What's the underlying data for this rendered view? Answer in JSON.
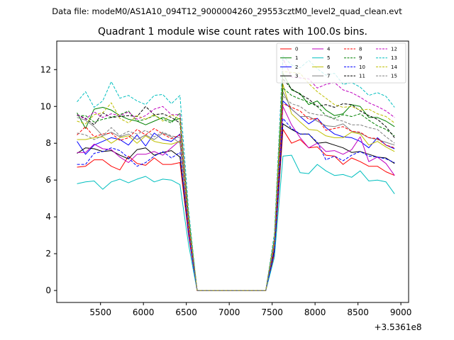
{
  "figure": {
    "suptitle": "Data file: modeM0/AS1A10_094T12_9000004260_29553cztM0_level2_quad_clean.evt",
    "title": "Quadrant 1 module wise count rates with 100.0s bins."
  },
  "chart_data": {
    "type": "line",
    "title": "Quadrant 1 module wise count rates with 100.0s bins.",
    "xlabel": "",
    "ylabel": "",
    "x_offset_label": "+3.5361e8",
    "xlim": [
      4990,
      9090
    ],
    "ylim": [
      -0.65,
      13.55
    ],
    "xticks": [
      5500,
      6000,
      6500,
      7000,
      7500,
      8000,
      8500,
      9000
    ],
    "yticks": [
      0,
      2,
      4,
      6,
      8,
      10,
      12
    ],
    "legend_position": "top-right",
    "legend_columns": 4,
    "x": [
      5226,
      5326,
      5426,
      5526,
      5626,
      5726,
      5826,
      5926,
      6026,
      6126,
      6226,
      6326,
      6426,
      6526,
      6626,
      6726,
      6826,
      6926,
      7026,
      7126,
      7226,
      7326,
      7426,
      7526,
      7626,
      7726,
      7826,
      7926,
      8026,
      8126,
      8226,
      8326,
      8426,
      8526,
      8626,
      8726,
      8826,
      8926
    ],
    "series": [
      {
        "name": "0",
        "color": "#ff0000",
        "dash": "solid",
        "values": [
          6.7,
          6.75,
          7.1,
          7.1,
          6.75,
          6.55,
          7.3,
          6.9,
          6.8,
          7.2,
          6.85,
          6.85,
          6.95,
          3.0,
          0,
          0,
          0,
          0,
          0,
          0,
          0,
          0,
          0,
          2.0,
          8.75,
          8.0,
          8.2,
          7.75,
          7.8,
          7.35,
          7.3,
          6.85,
          7.2,
          7.0,
          6.75,
          6.75,
          6.45,
          6.25
        ]
      },
      {
        "name": "1",
        "color": "#008000",
        "dash": "solid",
        "values": [
          9.65,
          8.8,
          9.85,
          9.95,
          9.8,
          9.5,
          9.3,
          9.2,
          9.0,
          9.2,
          9.4,
          9.2,
          9.35,
          4.0,
          0,
          0,
          0,
          0,
          0,
          0,
          0,
          0,
          0,
          2.7,
          11.8,
          10.9,
          10.7,
          10.1,
          10.3,
          9.8,
          9.5,
          9.6,
          10.1,
          10.0,
          9.4,
          9.4,
          9.2,
          8.9
        ]
      },
      {
        "name": "2",
        "color": "#0000ff",
        "dash": "solid",
        "values": [
          8.1,
          7.4,
          7.9,
          8.1,
          8.3,
          8.2,
          7.9,
          8.45,
          7.85,
          8.55,
          8.2,
          8.1,
          8.5,
          3.5,
          0,
          0,
          0,
          0,
          0,
          0,
          0,
          0,
          0,
          2.4,
          10.3,
          9.85,
          9.45,
          9.05,
          9.35,
          8.85,
          8.5,
          8.35,
          8.3,
          8.1,
          7.75,
          8.3,
          7.9,
          7.7
        ]
      },
      {
        "name": "3",
        "color": "#000000",
        "dash": "solid",
        "values": [
          7.45,
          7.75,
          7.7,
          7.55,
          7.6,
          7.35,
          7.15,
          7.65,
          7.75,
          7.35,
          7.5,
          7.6,
          7.25,
          3.2,
          0,
          0,
          0,
          0,
          0,
          0,
          0,
          0,
          0,
          2.2,
          9.05,
          8.75,
          8.5,
          8.5,
          8.0,
          8.05,
          7.9,
          7.75,
          7.5,
          7.55,
          7.4,
          7.25,
          7.2,
          6.9
        ]
      },
      {
        "name": "4",
        "color": "#bf00bf",
        "dash": "solid",
        "values": [
          7.5,
          7.5,
          7.95,
          7.7,
          7.65,
          7.25,
          6.95,
          7.4,
          7.4,
          7.55,
          7.35,
          7.75,
          8.15,
          3.3,
          0,
          0,
          0,
          0,
          0,
          0,
          0,
          0,
          0,
          2.4,
          10.0,
          9.0,
          8.3,
          7.75,
          8.0,
          7.55,
          7.6,
          7.4,
          7.65,
          8.35,
          7.0,
          7.25,
          6.9,
          6.25
        ]
      },
      {
        "name": "5",
        "color": "#00bfbf",
        "dash": "solid",
        "values": [
          5.8,
          5.9,
          5.95,
          5.5,
          5.9,
          6.05,
          5.85,
          6.05,
          6.2,
          5.9,
          6.05,
          6.0,
          5.75,
          2.5,
          0,
          0,
          0,
          0,
          0,
          0,
          0,
          0,
          0,
          1.8,
          7.3,
          7.35,
          6.4,
          6.35,
          6.85,
          6.5,
          6.25,
          6.3,
          6.15,
          6.5,
          5.95,
          6.0,
          5.9,
          5.25
        ]
      },
      {
        "name": "6",
        "color": "#bfbf00",
        "dash": "solid",
        "values": [
          8.2,
          8.2,
          8.3,
          8.35,
          8.0,
          8.3,
          8.4,
          8.0,
          8.4,
          8.1,
          8.0,
          7.95,
          8.1,
          3.5,
          0,
          0,
          0,
          0,
          0,
          0,
          0,
          0,
          0,
          2.5,
          11.2,
          9.6,
          9.15,
          8.75,
          8.7,
          8.4,
          8.3,
          8.3,
          8.6,
          8.5,
          7.9,
          8.1,
          7.8,
          7.55
        ]
      },
      {
        "name": "7",
        "color": "#808080",
        "dash": "solid",
        "values": [
          9.4,
          9.25,
          8.9,
          8.4,
          8.6,
          8.35,
          8.5,
          8.2,
          8.45,
          8.2,
          8.55,
          8.35,
          8.0,
          3.6,
          0,
          0,
          0,
          0,
          0,
          0,
          0,
          0,
          0,
          2.6,
          10.8,
          9.85,
          9.45,
          9.45,
          9.2,
          8.95,
          8.9,
          9.05,
          8.65,
          8.55,
          8.3,
          8.2,
          8.05,
          7.9
        ]
      },
      {
        "name": "8",
        "color": "#ff0000",
        "dash": "dashed",
        "values": [
          8.45,
          8.9,
          8.35,
          8.5,
          8.55,
          8.15,
          8.3,
          8.75,
          8.45,
          8.8,
          8.5,
          8.25,
          8.45,
          3.6,
          0,
          0,
          0,
          0,
          0,
          0,
          0,
          0,
          0,
          2.6,
          10.15,
          9.95,
          9.75,
          9.3,
          9.35,
          8.7,
          8.8,
          8.9,
          8.65,
          8.6,
          8.3,
          8.25,
          7.9,
          7.75
        ]
      },
      {
        "name": "9",
        "color": "#008000",
        "dash": "dashed",
        "values": [
          9.5,
          9.5,
          9.15,
          9.3,
          9.4,
          9.55,
          9.75,
          9.2,
          9.3,
          9.5,
          9.3,
          9.1,
          9.65,
          4.0,
          0,
          0,
          0,
          0,
          0,
          0,
          0,
          0,
          0,
          2.8,
          11.0,
          10.6,
          10.4,
          10.25,
          10.0,
          9.5,
          9.35,
          9.55,
          9.45,
          9.6,
          9.25,
          8.95,
          8.75,
          8.4
        ]
      },
      {
        "name": "10",
        "color": "#0000ff",
        "dash": "dashed",
        "values": [
          6.85,
          6.85,
          7.45,
          7.55,
          7.75,
          7.6,
          7.2,
          6.75,
          6.95,
          7.3,
          7.55,
          7.2,
          7.5,
          3.1,
          0,
          0,
          0,
          0,
          0,
          0,
          0,
          0,
          0,
          2.1,
          9.35,
          8.8,
          8.5,
          8.5,
          8.05,
          7.1,
          7.3,
          7.05,
          7.35,
          7.55,
          7.3,
          7.25,
          7.15,
          6.95
        ]
      },
      {
        "name": "11",
        "color": "#000000",
        "dash": "dashed",
        "values": [
          9.55,
          9.35,
          9.0,
          9.65,
          9.4,
          9.45,
          9.5,
          9.45,
          10.0,
          9.55,
          9.6,
          9.4,
          9.1,
          4.0,
          0,
          0,
          0,
          0,
          0,
          0,
          0,
          0,
          0,
          2.9,
          11.5,
          10.95,
          10.65,
          10.4,
          10.0,
          10.1,
          9.95,
          10.15,
          10.1,
          9.75,
          9.5,
          9.3,
          8.9,
          8.3
        ]
      },
      {
        "name": "12",
        "color": "#bf00bf",
        "dash": "dashed",
        "values": [
          9.55,
          9.3,
          9.7,
          9.4,
          9.6,
          9.5,
          9.7,
          9.3,
          9.5,
          9.85,
          10.0,
          9.55,
          9.55,
          4.2,
          0,
          0,
          0,
          0,
          0,
          0,
          0,
          0,
          0,
          3.0,
          12.6,
          11.6,
          11.55,
          11.5,
          11.0,
          11.2,
          11.3,
          10.9,
          10.75,
          10.5,
          10.2,
          10.0,
          9.75,
          9.4
        ]
      },
      {
        "name": "13",
        "color": "#00bfbf",
        "dash": "dashed",
        "values": [
          10.25,
          10.8,
          9.95,
          10.3,
          11.35,
          10.45,
          10.6,
          10.3,
          10.1,
          10.6,
          10.65,
          10.15,
          10.6,
          4.4,
          0,
          0,
          0,
          0,
          0,
          0,
          0,
          0,
          0,
          3.1,
          12.75,
          12.25,
          12.1,
          12.5,
          12.05,
          11.7,
          11.8,
          11.2,
          11.3,
          11.05,
          10.6,
          10.75,
          10.55,
          9.95
        ]
      },
      {
        "name": "14",
        "color": "#bfbf00",
        "dash": "dashed",
        "values": [
          9.2,
          9.05,
          9.55,
          9.65,
          10.2,
          9.35,
          9.1,
          9.5,
          9.3,
          9.55,
          9.2,
          9.55,
          9.3,
          4.0,
          0,
          0,
          0,
          0,
          0,
          0,
          0,
          0,
          0,
          2.8,
          11.9,
          11.85,
          11.8,
          11.25,
          10.8,
          10.45,
          10.1,
          9.95,
          10.0,
          9.8,
          9.85,
          9.6,
          9.45,
          9.1
        ]
      },
      {
        "name": "15",
        "color": "#808080",
        "dash": "dashed",
        "values": [
          8.55,
          8.45,
          8.2,
          8.4,
          8.85,
          8.4,
          8.65,
          8.5,
          8.7,
          8.35,
          8.6,
          8.4,
          8.3,
          3.7,
          0,
          0,
          0,
          0,
          0,
          0,
          0,
          0,
          0,
          2.6,
          10.55,
          10.15,
          10.0,
          9.65,
          9.55,
          9.5,
          9.3,
          9.2,
          9.0,
          9.0,
          8.85,
          8.75,
          8.35,
          8.0
        ]
      }
    ]
  }
}
